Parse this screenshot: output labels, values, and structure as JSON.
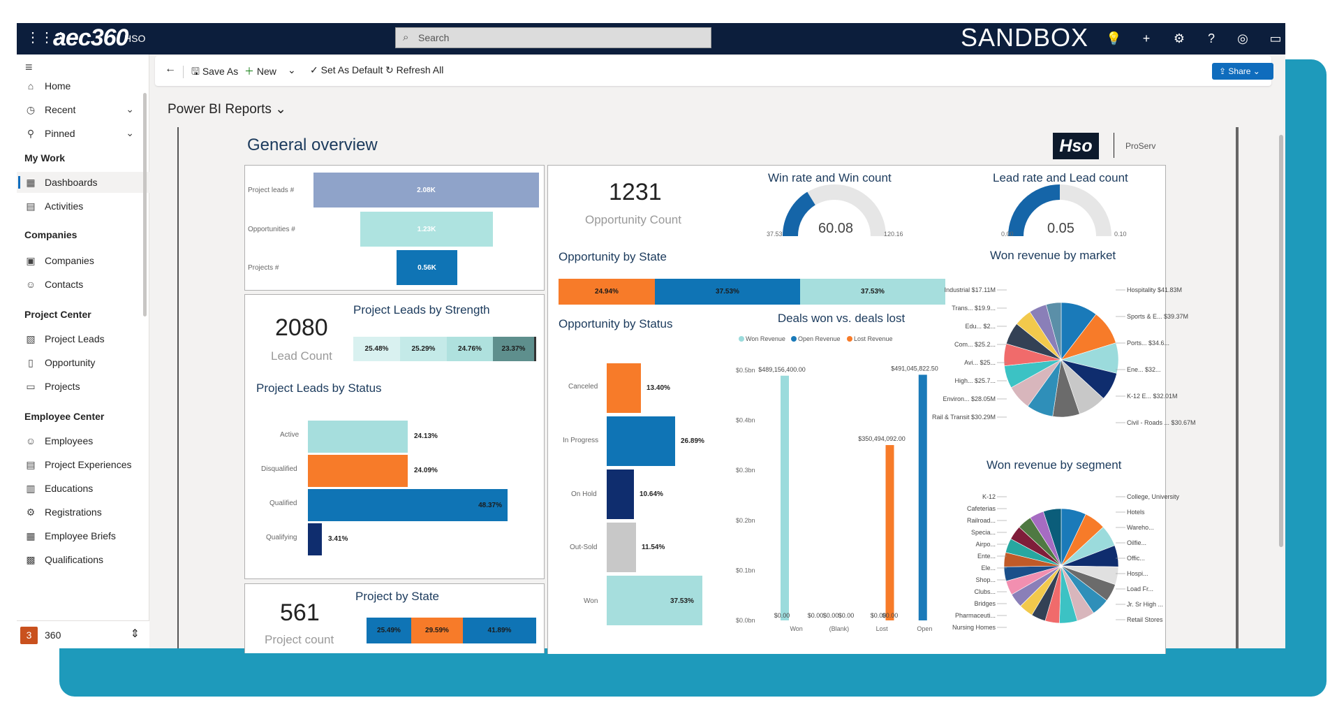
{
  "topbar": {
    "brand": "aec360",
    "org": "HSO",
    "search_placeholder": "Search",
    "env": "SANDBOX"
  },
  "sidebar": {
    "home": "Home",
    "recent": "Recent",
    "pinned": "Pinned",
    "my_work": "My Work",
    "dashboards": "Dashboards",
    "activities": "Activities",
    "companies_head": "Companies",
    "companies": "Companies",
    "contacts": "Contacts",
    "pc_head": "Project Center",
    "project_leads": "Project Leads",
    "opportunity": "Opportunity",
    "projects": "Projects",
    "ec_head": "Employee Center",
    "employees": "Employees",
    "project_experiences": "Project Experiences",
    "educations": "Educations",
    "registrations": "Registrations",
    "employee_briefs": "Employee Briefs",
    "qualifications": "Qualifications",
    "footer_badge": "3",
    "footer_name": "360"
  },
  "cmdbar": {
    "save_as": "Save As",
    "new": "New",
    "set_default": "Set As Default",
    "refresh": "Refresh All",
    "share": "Share"
  },
  "page_title": "Power BI Reports",
  "report": {
    "title": "General overview",
    "logo": "Hso",
    "logo_sub": "ProServ",
    "funnel": {
      "labels": [
        "Project leads #",
        "Opportunities #",
        "Projects #"
      ],
      "values": [
        "2.08K",
        "1.23K",
        "0.56K"
      ]
    },
    "opp_count": {
      "value": "1231",
      "label": "Opportunity Count"
    },
    "win_rate": {
      "title": "Win rate and Win count",
      "value": "60.08",
      "min": "37.53",
      "max": "120.16"
    },
    "lead_rate": {
      "title": "Lead rate and Lead count",
      "value": "0.05",
      "min": "0.00",
      "max": "0.10"
    },
    "lead_count": {
      "value": "2080",
      "label": "Lead Count"
    },
    "leads_strength": {
      "title": "Project Leads by Strength",
      "values": [
        "25.48%",
        "25.29%",
        "24.76%",
        "23.37%"
      ]
    },
    "leads_status": {
      "title": "Project Leads by Status",
      "labels": [
        "Active",
        "Disqualified",
        "Qualified",
        "Qualifying"
      ],
      "values": [
        "24.13%",
        "24.09%",
        "48.37%",
        "3.41%"
      ]
    },
    "project_count": {
      "value": "561",
      "label": "Project count"
    },
    "project_state": {
      "title": "Project by State",
      "values": [
        "25.49%",
        "29.59%",
        "41.89%"
      ]
    },
    "opp_state": {
      "title": "Opportunity by State",
      "values": [
        "24.94%",
        "37.53%",
        "37.53%"
      ]
    },
    "opp_status": {
      "title": "Opportunity by Status",
      "labels": [
        "Canceled",
        "In Progress",
        "On Hold",
        "Out-Sold",
        "Won"
      ],
      "values": [
        "13.40%",
        "26.89%",
        "10.64%",
        "11.54%",
        "37.53%"
      ]
    },
    "won_market": {
      "title": "Won revenue by market"
    },
    "won_segment": {
      "title": "Won revenue by segment"
    }
  },
  "chart_data": [
    {
      "type": "bar",
      "title": "Deals won vs. deals lost",
      "categories": [
        "Won",
        "(Blank)",
        "Lost",
        "Open"
      ],
      "series": [
        {
          "name": "Won Revenue",
          "color": "#9bdbdc",
          "values": [
            489156400,
            0,
            0,
            0
          ]
        },
        {
          "name": "Open Revenue",
          "color": "#1a7ab9",
          "values": [
            0,
            0,
            0,
            491045822.5
          ]
        },
        {
          "name": "Lost Revenue",
          "color": "#f77b29",
          "values": [
            0,
            0,
            350494092,
            0
          ]
        }
      ],
      "data_labels": [
        "$489,156,400.00",
        "$0.00",
        "$0.00",
        "$0.00",
        "$0.00",
        "$350,494,092.00",
        "$0.00",
        "$0.00",
        "$491,045,822.50"
      ],
      "y_ticks": [
        "$0.5bn",
        "$0.4bn",
        "$0.3bn",
        "$0.2bn",
        "$0.1bn",
        "$0.0bn"
      ],
      "ylim": [
        0,
        500000000
      ]
    },
    {
      "type": "pie",
      "title": "Won revenue by market",
      "left_labels": [
        "Industrial $17.11M",
        "Trans... $19.9...",
        "Edu... $2...",
        "Com... $25.2...",
        "Avi... $25...",
        "High... $25.7...",
        "Environ... $28.05M",
        "Rail & Transit $30.29M"
      ],
      "right_labels": [
        "Hospitality $41.83M",
        "Sports & E... $39.37M",
        "Ports... $34.6...",
        "Ene... $32...",
        "K-12 E... $32.01M",
        "Civil - Roads ... $30.67M"
      ],
      "slices": [
        {
          "label": "Hospitality",
          "value": 41.83,
          "color": "#1a7ab9"
        },
        {
          "label": "Sports & E...",
          "value": 39.37,
          "color": "#f77b29"
        },
        {
          "label": "Ports...",
          "value": 34.6,
          "color": "#9bdbdc"
        },
        {
          "label": "Ene...",
          "value": 32.0,
          "color": "#0f2d6e"
        },
        {
          "label": "K-12 E...",
          "value": 32.01,
          "color": "#c8c8c8"
        },
        {
          "label": "Civil - Roads ...",
          "value": 30.67,
          "color": "#6b6b6b"
        },
        {
          "label": "Rail & Transit",
          "value": 30.29,
          "color": "#2f8fb9"
        },
        {
          "label": "Environ...",
          "value": 28.05,
          "color": "#d8b6bc"
        },
        {
          "label": "High...",
          "value": 25.7,
          "color": "#3cc2c4"
        },
        {
          "label": "Avi...",
          "value": 25.0,
          "color": "#f06b6b"
        },
        {
          "label": "Com...",
          "value": 25.2,
          "color": "#334155"
        },
        {
          "label": "Edu...",
          "value": 20.0,
          "color": "#f2c94c"
        },
        {
          "label": "Trans...",
          "value": 19.9,
          "color": "#8a7fb8"
        },
        {
          "label": "Industrial",
          "value": 17.11,
          "color": "#5b8fa8"
        }
      ]
    },
    {
      "type": "pie",
      "title": "Won revenue by segment",
      "left_labels": [
        "K-12",
        "Cafeterias",
        "Railroad...",
        "Specia...",
        "Airpo...",
        "Ente...",
        "Ele...",
        "Shop...",
        "Clubs...",
        "Bridges",
        "Pharmaceuti...",
        "Nursing Homes"
      ],
      "right_labels": [
        "College, University",
        "Hotels",
        "Wareho...",
        "Oilfie...",
        "Offic...",
        "Hospi...",
        "Load Fr...",
        "Jr. Sr High ...",
        "Retail Stores"
      ],
      "slices": [
        {
          "label": "College, University",
          "value": 7,
          "color": "#1a7ab9"
        },
        {
          "label": "Hotels",
          "value": 6,
          "color": "#f77b29"
        },
        {
          "label": "Wareho...",
          "value": 6,
          "color": "#9bdbdc"
        },
        {
          "label": "Oilfie...",
          "value": 6,
          "color": "#0f2d6e"
        },
        {
          "label": "Offic...",
          "value": 5,
          "color": "#e0e0e0"
        },
        {
          "label": "Hospi...",
          "value": 5,
          "color": "#6b6b6b"
        },
        {
          "label": "Load Fr...",
          "value": 5,
          "color": "#2f8fb9"
        },
        {
          "label": "Jr. Sr High ...",
          "value": 5,
          "color": "#d8b6bc"
        },
        {
          "label": "Retail Stores",
          "value": 5,
          "color": "#3cc2c4"
        },
        {
          "label": "Nursing Homes",
          "value": 4,
          "color": "#f06b6b"
        },
        {
          "label": "Pharmaceuti...",
          "value": 4,
          "color": "#334155"
        },
        {
          "label": "Bridges",
          "value": 4,
          "color": "#f2c94c"
        },
        {
          "label": "Clubs...",
          "value": 4,
          "color": "#8a7fb8"
        },
        {
          "label": "Shop...",
          "value": 4,
          "color": "#f28fb0"
        },
        {
          "label": "Ele...",
          "value": 4,
          "color": "#1b4f8a"
        },
        {
          "label": "Ente...",
          "value": 4,
          "color": "#c05a28"
        },
        {
          "label": "Airpo...",
          "value": 4,
          "color": "#27a7a0"
        },
        {
          "label": "Specia...",
          "value": 4,
          "color": "#7f1d3a"
        },
        {
          "label": "Railroad...",
          "value": 4,
          "color": "#4f7942"
        },
        {
          "label": "Cafeterias",
          "value": 4,
          "color": "#a66cc2"
        },
        {
          "label": "K-12",
          "value": 5,
          "color": "#0b5d7a"
        }
      ]
    }
  ]
}
